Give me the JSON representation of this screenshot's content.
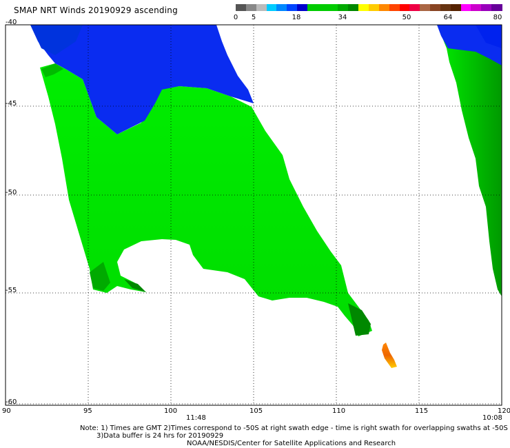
{
  "title": "SMAP NRT Winds 20190929 ascending",
  "colorbar": {
    "segments": [
      {
        "color": "#555555"
      },
      {
        "color": "#888888"
      },
      {
        "color": "#bbbbbb"
      },
      {
        "color": "#00ccff"
      },
      {
        "color": "#0088ff"
      },
      {
        "color": "#0044ff"
      },
      {
        "color": "#0000cc"
      },
      {
        "color": "#00cc00"
      },
      {
        "color": "#00cc00"
      },
      {
        "color": "#00cc00"
      },
      {
        "color": "#00aa00"
      },
      {
        "color": "#008800"
      },
      {
        "color": "#ffff00"
      },
      {
        "color": "#ffcc00"
      },
      {
        "color": "#ff8800"
      },
      {
        "color": "#ff4400"
      },
      {
        "color": "#ff0000"
      },
      {
        "color": "#ee0044"
      },
      {
        "color": "#aa6644"
      },
      {
        "color": "#884422"
      },
      {
        "color": "#663311"
      },
      {
        "color": "#552200"
      },
      {
        "color": "#ff00ff"
      },
      {
        "color": "#cc00cc"
      },
      {
        "color": "#9900bb"
      },
      {
        "color": "#660099"
      }
    ],
    "labels": [
      "0",
      "5",
      "18",
      "34",
      "50",
      "64",
      "80"
    ]
  },
  "axes": {
    "lat_labels": [
      "-40",
      "-45",
      "-50",
      "-55",
      "-60"
    ],
    "lon_labels": [
      "90",
      "95",
      "100",
      "105",
      "110",
      "115",
      "120"
    ],
    "time_labels": [
      "11:48",
      "10:08"
    ]
  },
  "notes": {
    "line1": "Note: 1) Times are GMT 2)Times correspond to -50S at right swath edge - time is right swath for overlapping swaths at -50S",
    "line2": "3)Data buffer is 24 hrs for 20190929",
    "line3": "NOAA/NESDIS/Center for Satellite Applications and Research"
  },
  "colors": {
    "calm_blue": "#0a2cf0",
    "wind_green": "#00ee00",
    "dark_green": "#00a000",
    "high_orange": "#ff8800"
  }
}
